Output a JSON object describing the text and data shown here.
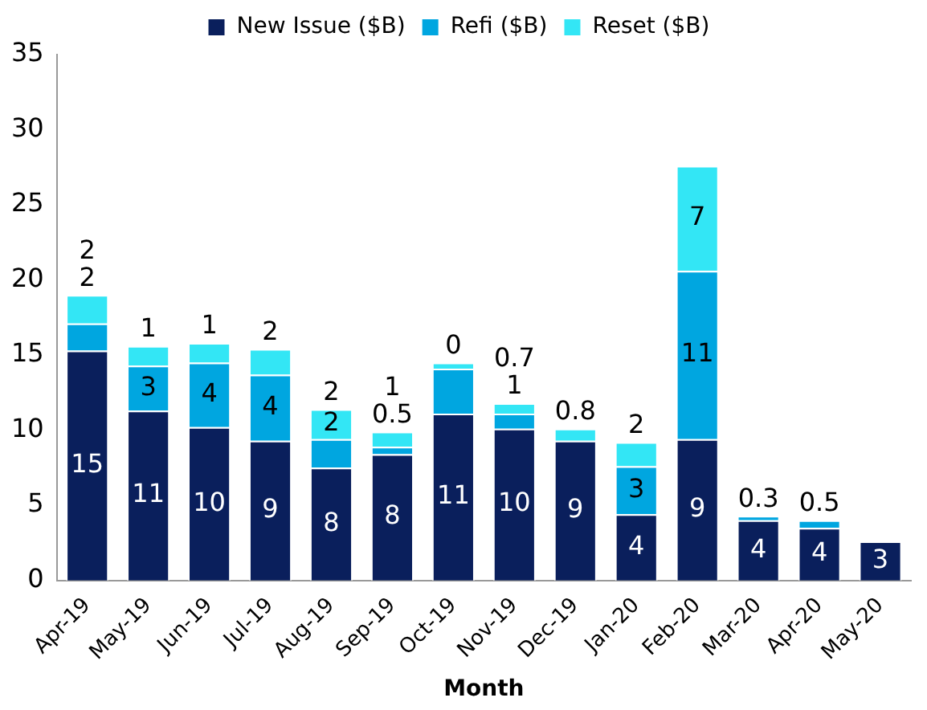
{
  "chart_data": {
    "type": "bar",
    "stacked": true,
    "xlabel": "Month",
    "categories": [
      "Apr-19",
      "May-19",
      "Jun-19",
      "Jul-19",
      "Aug-19",
      "Sep-19",
      "Oct-19",
      "Nov-19",
      "Dec-19",
      "Jan-20",
      "Feb-20",
      "Mar-20",
      "Apr-20",
      "May-20"
    ],
    "series": [
      {
        "name": "New Issue ($B)",
        "color": "#0a1f5c",
        "values": [
          15.3,
          11.3,
          10.2,
          9.3,
          7.5,
          8.4,
          11.1,
          10.1,
          9.3,
          4.4,
          9.4,
          4.0,
          3.5,
          2.6
        ],
        "value_labels": [
          "15",
          "11",
          "10",
          "9",
          "8",
          "8",
          "11",
          "10",
          "9",
          "4",
          "9",
          "4",
          "4",
          "3"
        ]
      },
      {
        "name": "Refi ($B)",
        "color": "#00a6e0",
        "values": [
          1.8,
          3.0,
          4.3,
          4.4,
          1.9,
          0.5,
          3.0,
          1,
          null,
          3.2,
          11.2,
          0.3,
          0.5,
          null
        ],
        "value_labels": [
          "2",
          "3",
          "4",
          "4",
          "2",
          "0.5",
          null,
          "1",
          null,
          "3",
          "11",
          "0.3",
          "0.5",
          null
        ]
      },
      {
        "name": "Reset ($B)",
        "color": "#33e6f5",
        "values": [
          1.9,
          1.3,
          1.3,
          1.7,
          2.0,
          1,
          0.4,
          0.7,
          0.8,
          1.6,
          7.0,
          null,
          null,
          null
        ],
        "value_labels": [
          "2",
          "1",
          "1",
          "2",
          "2",
          "1",
          "0",
          "0.7",
          "0.8",
          "2",
          "7",
          null,
          null,
          null
        ]
      }
    ],
    "ylim": [
      0,
      35
    ],
    "yticks": [
      0,
      5,
      10,
      15,
      20,
      25,
      30,
      35
    ],
    "grid": false,
    "legend": "top"
  }
}
